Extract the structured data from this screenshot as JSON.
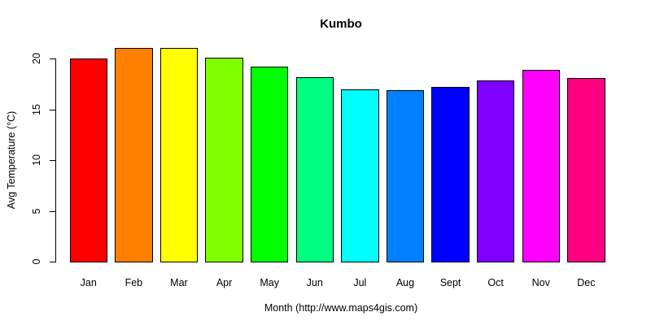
{
  "chart_data": {
    "type": "bar",
    "title": "Kumbo",
    "xlabel": "Month (http://www.maps4gis.com)",
    "ylabel": "Avg Temperature (°C)",
    "categories": [
      "Jan",
      "Feb",
      "Mar",
      "Apr",
      "May",
      "Jun",
      "Jul",
      "Aug",
      "Sept",
      "Oct",
      "Nov",
      "Dec"
    ],
    "values": [
      20,
      21.1,
      21.1,
      20.1,
      19.2,
      18.2,
      17,
      16.9,
      17.2,
      17.9,
      18.9,
      18.1
    ],
    "bar_colors": [
      "#FF0000",
      "#FF8000",
      "#FFFF00",
      "#80FF00",
      "#00FF00",
      "#00FF80",
      "#00FFFF",
      "#0080FF",
      "#0000FF",
      "#8000FF",
      "#FF00FF",
      "#FF0080"
    ],
    "yticks": [
      0,
      5,
      10,
      15,
      20
    ],
    "ylim": [
      0,
      21.1
    ],
    "grid": false,
    "legend": false,
    "bar_border_color": "#000000",
    "axis_color": "#000000",
    "text_color": "#000000",
    "background": "#FFFFFF"
  }
}
